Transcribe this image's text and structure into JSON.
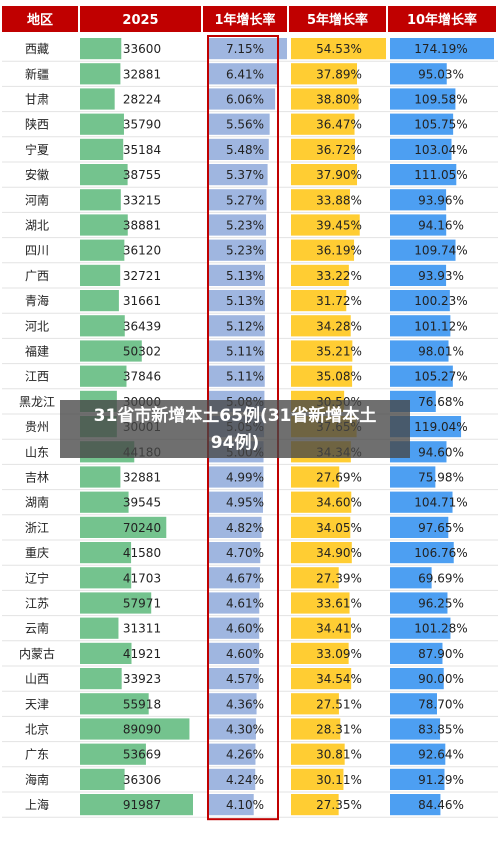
{
  "chart_data": {
    "type": "table",
    "columns": [
      "地区",
      "2025",
      "1年增长率",
      "5年增长率",
      "10年增长率"
    ],
    "rows": [
      {
        "region": "西藏",
        "value": 33600,
        "g1": "7.15%",
        "g5": "54.53%",
        "g10": "174.19%"
      },
      {
        "region": "新疆",
        "value": 32881,
        "g1": "6.41%",
        "g5": "37.89%",
        "g10": "95.03%"
      },
      {
        "region": "甘肃",
        "value": 28224,
        "g1": "6.06%",
        "g5": "38.80%",
        "g10": "109.58%"
      },
      {
        "region": "陕西",
        "value": 35790,
        "g1": "5.56%",
        "g5": "36.47%",
        "g10": "105.75%"
      },
      {
        "region": "宁夏",
        "value": 35184,
        "g1": "5.48%",
        "g5": "36.72%",
        "g10": "103.04%"
      },
      {
        "region": "安徽",
        "value": 38755,
        "g1": "5.37%",
        "g5": "37.90%",
        "g10": "111.05%"
      },
      {
        "region": "河南",
        "value": 33215,
        "g1": "5.27%",
        "g5": "33.88%",
        "g10": "93.96%"
      },
      {
        "region": "湖北",
        "value": 38881,
        "g1": "5.23%",
        "g5": "39.45%",
        "g10": "94.16%"
      },
      {
        "region": "四川",
        "value": 36120,
        "g1": "5.23%",
        "g5": "36.19%",
        "g10": "109.74%"
      },
      {
        "region": "广西",
        "value": 32721,
        "g1": "5.13%",
        "g5": "33.22%",
        "g10": "93.93%"
      },
      {
        "region": "青海",
        "value": 31661,
        "g1": "5.13%",
        "g5": "31.72%",
        "g10": "100.23%"
      },
      {
        "region": "河北",
        "value": 36439,
        "g1": "5.12%",
        "g5": "34.28%",
        "g10": "101.12%"
      },
      {
        "region": "福建",
        "value": 50302,
        "g1": "5.11%",
        "g5": "35.21%",
        "g10": "98.01%"
      },
      {
        "region": "江西",
        "value": 37846,
        "g1": "5.11%",
        "g5": "35.08%",
        "g10": "105.27%"
      },
      {
        "region": "黑龙江",
        "value": 30000,
        "g1": "5.08%",
        "g5": "30.50%",
        "g10": "76.68%"
      },
      {
        "region": "贵州",
        "value": 30001,
        "g1": "5.05%",
        "g5": "37.65%",
        "g10": "119.04%"
      },
      {
        "region": "山东",
        "value": 44180,
        "g1": "5.00%",
        "g5": "34.34%",
        "g10": "94.60%"
      },
      {
        "region": "吉林",
        "value": 32881,
        "g1": "4.99%",
        "g5": "27.69%",
        "g10": "75.98%"
      },
      {
        "region": "湖南",
        "value": 39545,
        "g1": "4.95%",
        "g5": "34.60%",
        "g10": "104.71%"
      },
      {
        "region": "浙江",
        "value": 70240,
        "g1": "4.82%",
        "g5": "34.05%",
        "g10": "97.65%"
      },
      {
        "region": "重庆",
        "value": 41580,
        "g1": "4.70%",
        "g5": "34.90%",
        "g10": "106.76%"
      },
      {
        "region": "辽宁",
        "value": 41703,
        "g1": "4.67%",
        "g5": "27.39%",
        "g10": "69.69%"
      },
      {
        "region": "江苏",
        "value": 57971,
        "g1": "4.61%",
        "g5": "33.61%",
        "g10": "96.25%"
      },
      {
        "region": "云南",
        "value": 31311,
        "g1": "4.60%",
        "g5": "34.41%",
        "g10": "101.28%"
      },
      {
        "region": "内蒙古",
        "value": 41921,
        "g1": "4.60%",
        "g5": "33.09%",
        "g10": "87.90%"
      },
      {
        "region": "山西",
        "value": 33923,
        "g1": "4.57%",
        "g5": "34.54%",
        "g10": "90.00%"
      },
      {
        "region": "天津",
        "value": 55918,
        "g1": "4.36%",
        "g5": "27.51%",
        "g10": "78.70%"
      },
      {
        "region": "北京",
        "value": 89090,
        "g1": "4.30%",
        "g5": "28.31%",
        "g10": "83.85%"
      },
      {
        "region": "广东",
        "value": 53669,
        "g1": "4.26%",
        "g5": "30.81%",
        "g10": "92.64%"
      },
      {
        "region": "海南",
        "value": 36306,
        "g1": "4.24%",
        "g5": "30.11%",
        "g10": "91.29%"
      },
      {
        "region": "上海",
        "value": 91987,
        "g1": "4.10%",
        "g5": "27.35%",
        "g10": "84.46%"
      }
    ]
  },
  "overlay": {
    "line1": "31省市新增本土65例(31省新增本土",
    "line2": "94例)"
  },
  "colors": {
    "header_bg": "#c00000",
    "header_text": "#ffffff",
    "value_bar": "#5cb97a",
    "g1_bar": "#8ea9db",
    "g5_bar": "#ffc000",
    "g10_bar": "#2e8ef0",
    "highlight_border": "#c00000"
  }
}
